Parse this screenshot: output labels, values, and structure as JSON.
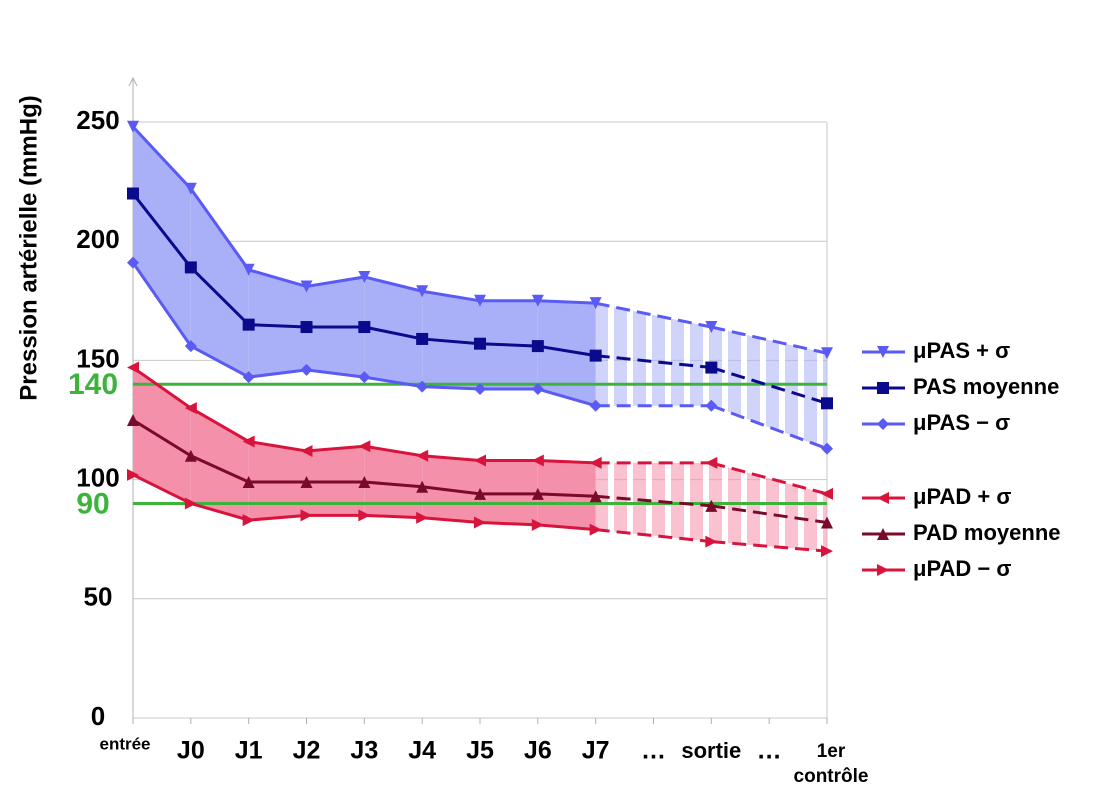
{
  "chart_data": {
    "type": "line",
    "y_label": "Pression artérielle (mmHg)",
    "categories": [
      "entrée",
      "J0",
      "J1",
      "J2",
      "J3",
      "J4",
      "J5",
      "J6",
      "J7",
      "…",
      "sortie",
      "…",
      "1er contrôle"
    ],
    "ylim": [
      0,
      250
    ],
    "yticks": [
      0,
      50,
      100,
      150,
      200,
      250
    ],
    "grid": true,
    "reference_lines": [
      {
        "value": 140
      },
      {
        "value": 90
      }
    ],
    "reference_color": "#3cb43c",
    "series": [
      {
        "name": "μPAS + σ",
        "color": "#5a5af5",
        "marker": "triangle-down",
        "band_color": "#aab0f8",
        "values": [
          248,
          222,
          188,
          181,
          185,
          179,
          175,
          175,
          174,
          null,
          164,
          null,
          153
        ]
      },
      {
        "name": "PAS moyenne",
        "color": "#0a0a8c",
        "marker": "square",
        "values": [
          220,
          189,
          165,
          164,
          164,
          159,
          157,
          156,
          152,
          null,
          147,
          null,
          132
        ]
      },
      {
        "name": "μPAS − σ",
        "color": "#5a5af5",
        "marker": "diamond",
        "values": [
          191,
          156,
          143,
          146,
          143,
          139,
          138,
          138,
          131,
          null,
          131,
          null,
          113
        ]
      },
      {
        "name": "μPAD + σ",
        "color": "#d8143c",
        "marker": "triangle-left",
        "band_color": "#f590aa",
        "values": [
          147,
          130,
          116,
          112,
          114,
          110,
          108,
          108,
          107,
          null,
          107,
          null,
          94
        ]
      },
      {
        "name": "PAD moyenne",
        "color": "#7a0a2a",
        "marker": "triangle-up",
        "values": [
          125,
          110,
          99,
          99,
          99,
          97,
          94,
          94,
          93,
          null,
          89,
          null,
          82
        ]
      },
      {
        "name": "μPAD − σ",
        "color": "#d8143c",
        "marker": "triangle-right",
        "values": [
          102,
          90,
          83,
          85,
          85,
          84,
          82,
          81,
          79,
          null,
          74,
          null,
          70
        ]
      }
    ]
  }
}
